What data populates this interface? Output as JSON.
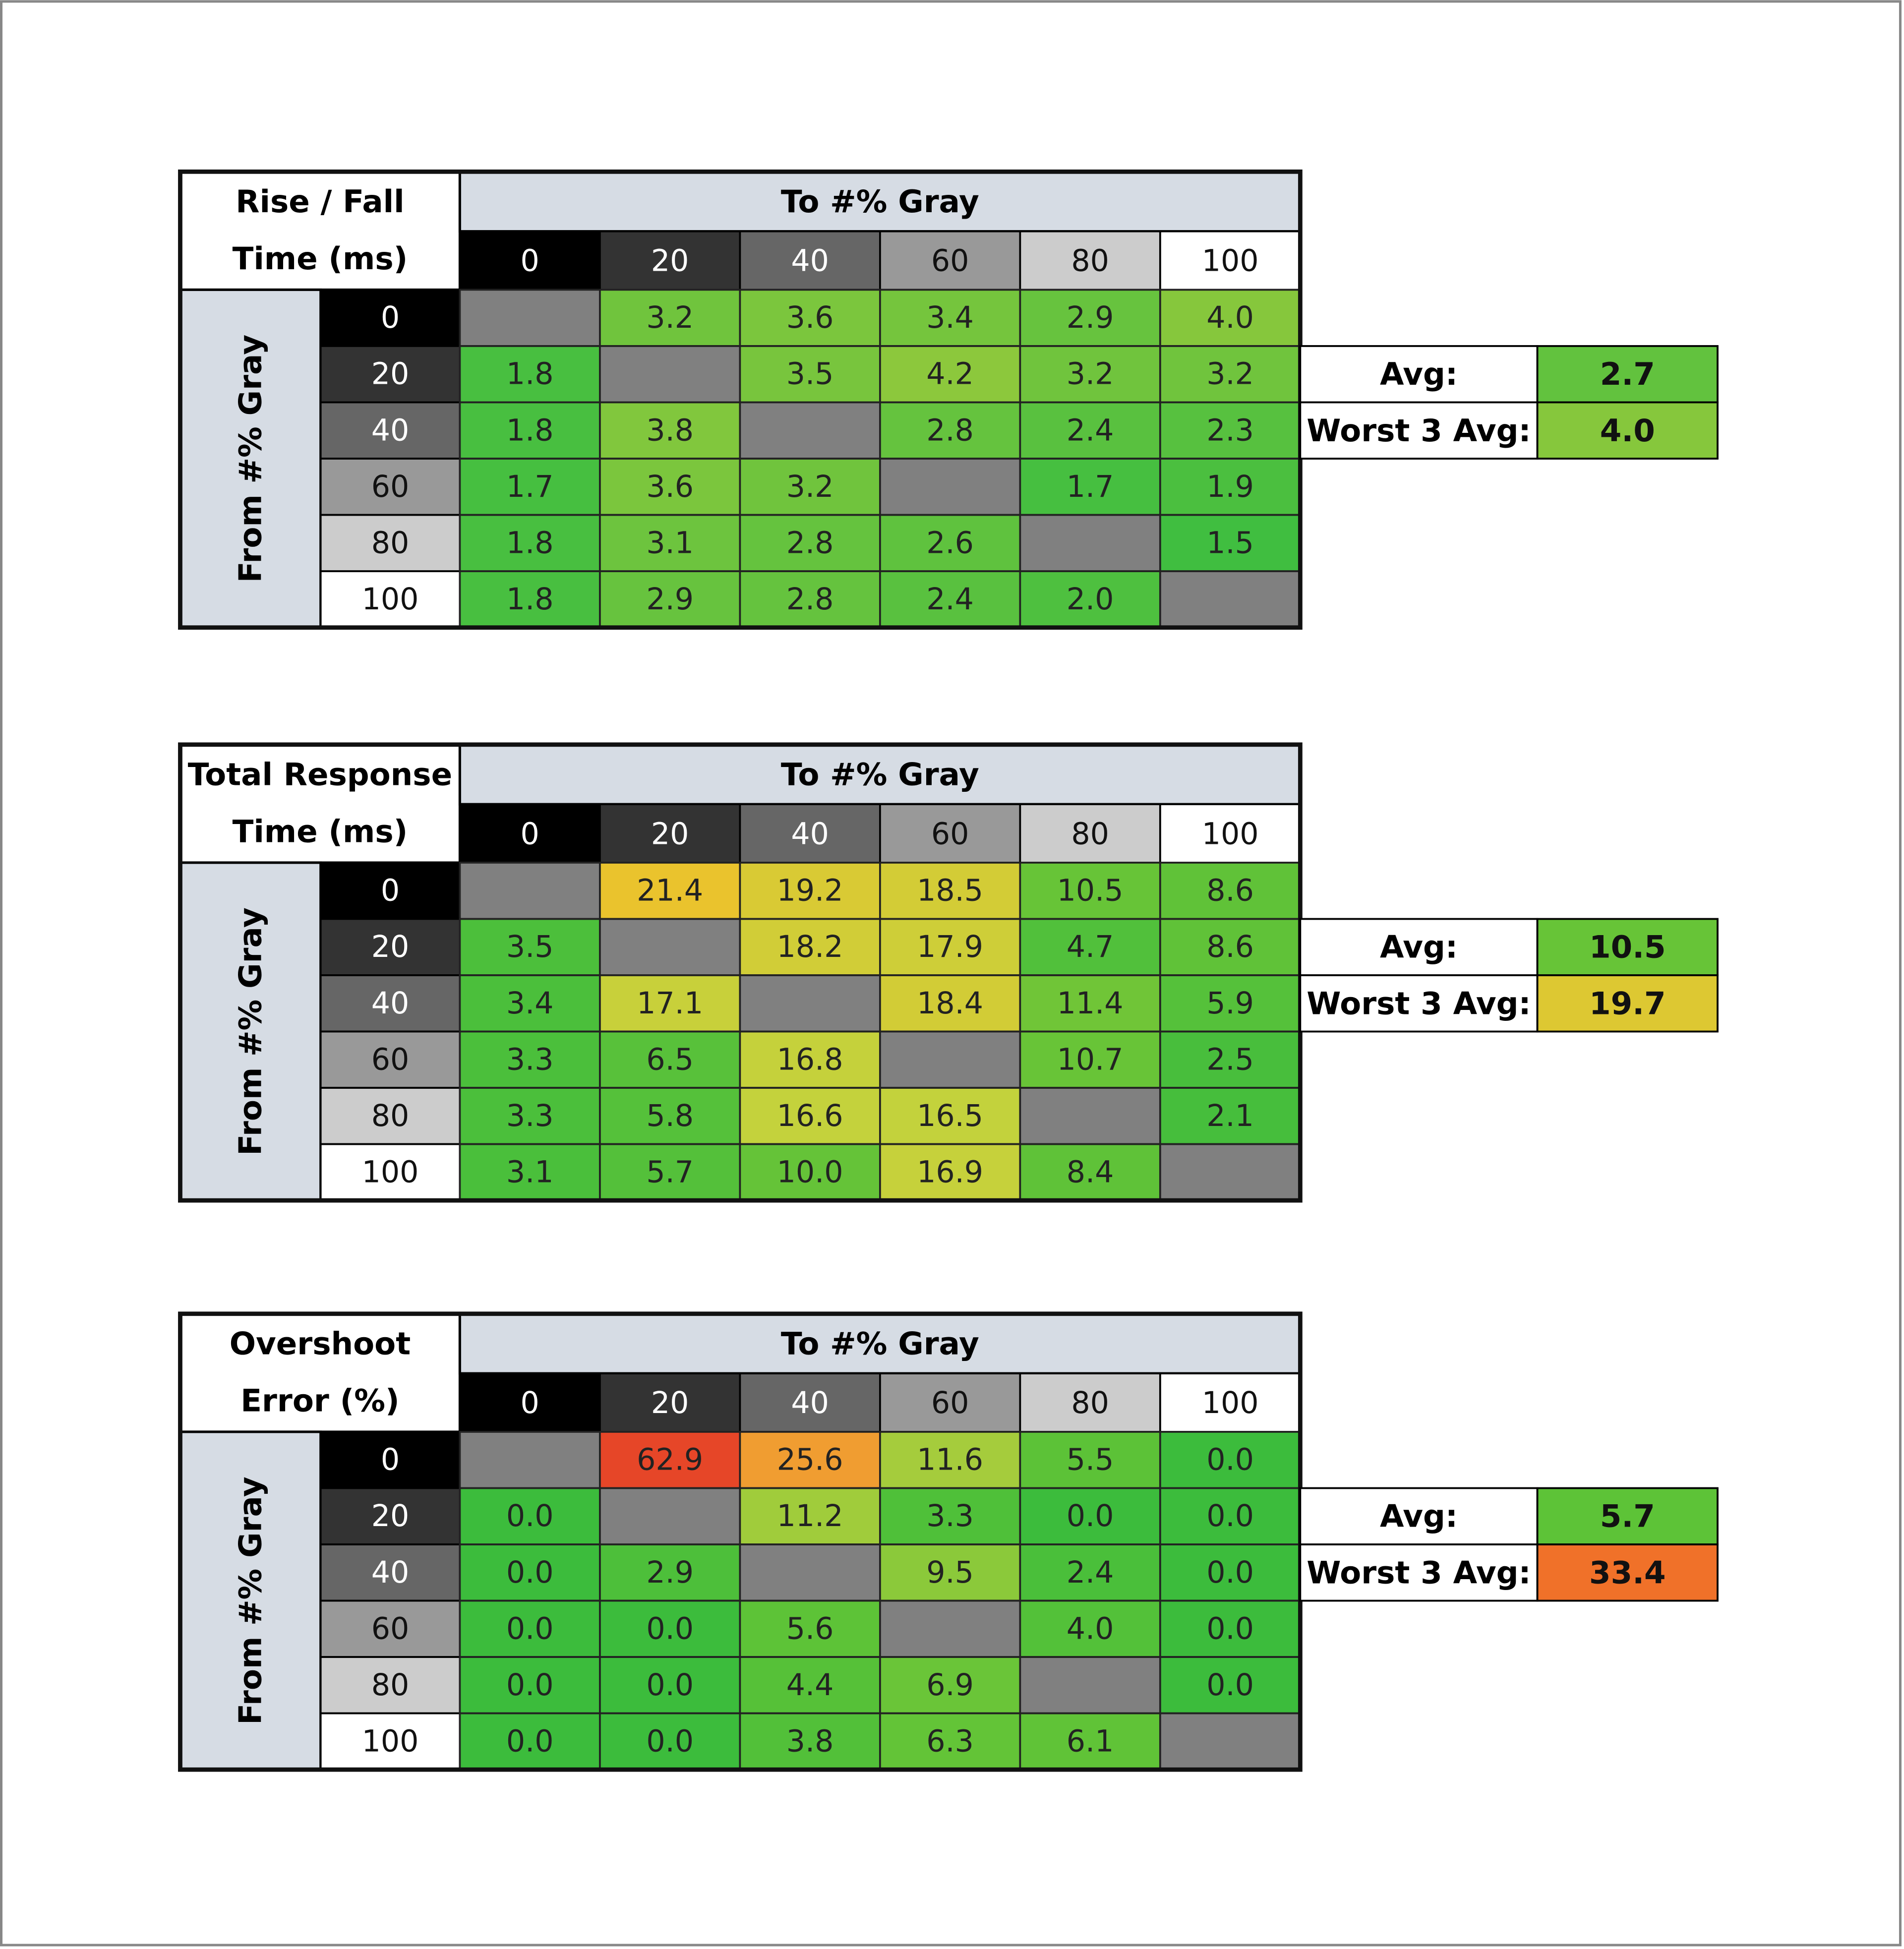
{
  "tables": [
    {
      "title": [
        "Rise / Fall",
        "Time (ms)"
      ],
      "to_header": "To #% Gray",
      "from_header": "From #% Gray",
      "columns": [
        "0",
        "20",
        "40",
        "60",
        "80",
        "100"
      ],
      "row_labels": [
        "0",
        "20",
        "40",
        "60",
        "80",
        "100"
      ],
      "rows": [
        [
          null,
          "3.2",
          "3.6",
          "3.4",
          "2.9",
          "4.0"
        ],
        [
          "1.8",
          null,
          "3.5",
          "4.2",
          "3.2",
          "3.2"
        ],
        [
          "1.8",
          "3.8",
          null,
          "2.8",
          "2.4",
          "2.3"
        ],
        [
          "1.7",
          "3.6",
          "3.2",
          null,
          "1.7",
          "1.9"
        ],
        [
          "1.8",
          "3.1",
          "2.8",
          "2.6",
          null,
          "1.5"
        ],
        [
          "1.8",
          "2.9",
          "2.8",
          "2.4",
          "2.0",
          null
        ]
      ],
      "avg_label": "Avg:",
      "avg": "2.7",
      "worst_label": "Worst 3 Avg:",
      "worst": "4.0"
    },
    {
      "title": [
        "Total Response",
        "Time (ms)"
      ],
      "to_header": "To #% Gray",
      "from_header": "From #% Gray",
      "columns": [
        "0",
        "20",
        "40",
        "60",
        "80",
        "100"
      ],
      "row_labels": [
        "0",
        "20",
        "40",
        "60",
        "80",
        "100"
      ],
      "rows": [
        [
          null,
          "21.4",
          "19.2",
          "18.5",
          "10.5",
          "8.6"
        ],
        [
          "3.5",
          null,
          "18.2",
          "17.9",
          "4.7",
          "8.6"
        ],
        [
          "3.4",
          "17.1",
          null,
          "18.4",
          "11.4",
          "5.9"
        ],
        [
          "3.3",
          "6.5",
          "16.8",
          null,
          "10.7",
          "2.5"
        ],
        [
          "3.3",
          "5.8",
          "16.6",
          "16.5",
          null,
          "2.1"
        ],
        [
          "3.1",
          "5.7",
          "10.0",
          "16.9",
          "8.4",
          null
        ]
      ],
      "avg_label": "Avg:",
      "avg": "10.5",
      "worst_label": "Worst 3 Avg:",
      "worst": "19.7"
    },
    {
      "title": [
        "Overshoot",
        "Error (%)"
      ],
      "to_header": "To #% Gray",
      "from_header": "From #% Gray",
      "columns": [
        "0",
        "20",
        "40",
        "60",
        "80",
        "100"
      ],
      "row_labels": [
        "0",
        "20",
        "40",
        "60",
        "80",
        "100"
      ],
      "rows": [
        [
          null,
          "62.9",
          "25.6",
          "11.6",
          "5.5",
          "0.0"
        ],
        [
          "0.0",
          null,
          "11.2",
          "3.3",
          "0.0",
          "0.0"
        ],
        [
          "0.0",
          "2.9",
          null,
          "9.5",
          "2.4",
          "0.0"
        ],
        [
          "0.0",
          "0.0",
          "5.6",
          null,
          "4.0",
          "0.0"
        ],
        [
          "0.0",
          "0.0",
          "4.4",
          "6.9",
          null,
          "0.0"
        ],
        [
          "0.0",
          "0.0",
          "3.8",
          "6.3",
          "6.1",
          null
        ]
      ],
      "avg_label": "Avg:",
      "avg": "5.7",
      "worst_label": "Worst 3 Avg:",
      "worst": "33.4"
    }
  ]
}
